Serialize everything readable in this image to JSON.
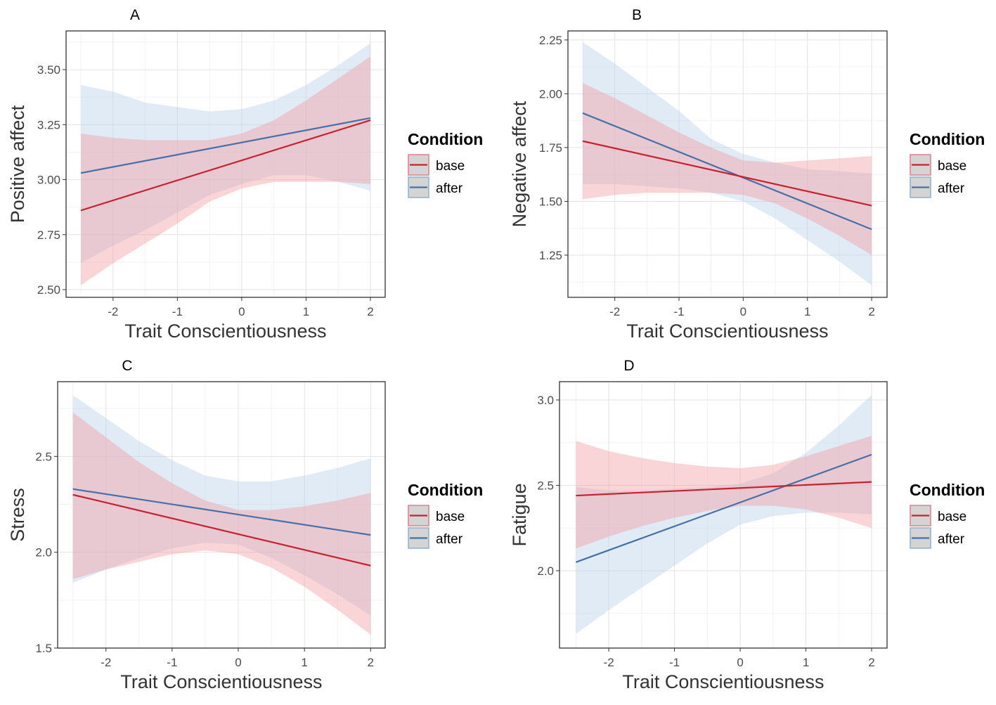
{
  "chart_data": [
    {
      "type": "line",
      "title": "A",
      "xlabel": "Trait Conscientiousness",
      "ylabel": "Positive affect",
      "xlim": [
        -2.73,
        2.23
      ],
      "ylim": [
        2.465,
        3.676
      ],
      "xticks": [
        -2,
        -1,
        0,
        1,
        2
      ],
      "xtick_labels": [
        "-2",
        "-1",
        "0",
        "1",
        "2"
      ],
      "yticks": [
        2.5,
        2.75,
        3.0,
        3.25,
        3.5
      ],
      "ytick_labels": [
        "2.50",
        "2.75",
        "3.00",
        "3.25",
        "3.50"
      ],
      "grid": true,
      "legend": {
        "title": "Condition",
        "placement": "right"
      },
      "series": [
        {
          "name": "base",
          "x": [
            -2.5,
            2
          ],
          "y": [
            2.86,
            3.27
          ],
          "ribbon": {
            "x": [
              -2.5,
              -2,
              -1.5,
              -1,
              -0.5,
              0,
              0.5,
              1,
              1.5,
              2
            ],
            "lower": [
              2.52,
              2.62,
              2.71,
              2.8,
              2.9,
              2.96,
              2.99,
              2.99,
              2.99,
              2.98
            ],
            "upper": [
              3.21,
              3.19,
              3.18,
              3.18,
              3.18,
              3.21,
              3.27,
              3.36,
              3.46,
              3.56
            ]
          }
        },
        {
          "name": "after",
          "x": [
            -2.5,
            2
          ],
          "y": [
            3.03,
            3.28
          ],
          "ribbon": {
            "x": [
              -2.5,
              -2,
              -1.5,
              -1,
              -0.5,
              0,
              0.5,
              1,
              1.5,
              2
            ],
            "lower": [
              2.62,
              2.7,
              2.77,
              2.85,
              2.93,
              2.98,
              3.02,
              3.02,
              2.99,
              2.95
            ],
            "upper": [
              3.43,
              3.4,
              3.35,
              3.33,
              3.31,
              3.32,
              3.36,
              3.43,
              3.52,
              3.62
            ]
          }
        }
      ]
    },
    {
      "type": "line",
      "title": "B",
      "xlabel": "Trait Conscientiousness",
      "ylabel": "Negative affect",
      "xlim": [
        -2.73,
        2.24
      ],
      "ylim": [
        1.054,
        2.292
      ],
      "xticks": [
        -2,
        -1,
        0,
        1,
        2
      ],
      "xtick_labels": [
        "-2",
        "-1",
        "0",
        "1",
        "2"
      ],
      "yticks": [
        1.25,
        1.5,
        1.75,
        2.0,
        2.25
      ],
      "ytick_labels": [
        "1.25",
        "1.50",
        "1.75",
        "2.00",
        "2.25"
      ],
      "grid": true,
      "legend": {
        "title": "Condition",
        "placement": "right"
      },
      "series": [
        {
          "name": "base",
          "x": [
            -2.5,
            2
          ],
          "y": [
            1.78,
            1.48
          ],
          "ribbon": {
            "x": [
              -2.5,
              -2,
              -1.5,
              -1,
              -0.5,
              0,
              0.5,
              1,
              1.5,
              2
            ],
            "lower": [
              1.51,
              1.53,
              1.54,
              1.54,
              1.54,
              1.53,
              1.49,
              1.42,
              1.34,
              1.25
            ],
            "upper": [
              2.05,
              1.98,
              1.9,
              1.82,
              1.75,
              1.69,
              1.68,
              1.69,
              1.7,
              1.71
            ]
          }
        },
        {
          "name": "after",
          "x": [
            -2.5,
            2
          ],
          "y": [
            1.91,
            1.37
          ],
          "ribbon": {
            "x": [
              -2.5,
              -2,
              -1.5,
              -1,
              -0.5,
              0,
              0.5,
              1,
              1.5,
              2
            ],
            "lower": [
              1.58,
              1.58,
              1.57,
              1.56,
              1.54,
              1.5,
              1.42,
              1.32,
              1.22,
              1.11
            ],
            "upper": [
              2.24,
              2.14,
              2.03,
              1.92,
              1.79,
              1.72,
              1.68,
              1.65,
              1.64,
              1.63
            ]
          }
        }
      ]
    },
    {
      "type": "line",
      "title": "C",
      "xlabel": "Trait Conscientiousness",
      "ylabel": "Stress",
      "xlim": [
        -2.73,
        2.22
      ],
      "ylim": [
        1.5,
        2.89
      ],
      "xticks": [
        -2,
        -1,
        0,
        1,
        2
      ],
      "xtick_labels": [
        "-2",
        "-1",
        "0",
        "1",
        "2"
      ],
      "yticks": [
        1.5,
        2.0,
        2.5
      ],
      "ytick_labels": [
        "1.5",
        "2.0",
        "2.5"
      ],
      "grid": true,
      "legend": {
        "title": "Condition",
        "placement": "right"
      },
      "series": [
        {
          "name": "base",
          "x": [
            -2.5,
            2
          ],
          "y": [
            2.3,
            1.93
          ],
          "ribbon": {
            "x": [
              -2.5,
              -2,
              -1.5,
              -1,
              -0.5,
              0,
              0.5,
              1,
              1.5,
              2
            ],
            "lower": [
              1.86,
              1.91,
              1.95,
              1.99,
              2.01,
              1.99,
              1.92,
              1.82,
              1.7,
              1.57
            ],
            "upper": [
              2.73,
              2.6,
              2.47,
              2.36,
              2.27,
              2.22,
              2.22,
              2.24,
              2.27,
              2.31
            ]
          }
        },
        {
          "name": "after",
          "x": [
            -2.5,
            2
          ],
          "y": [
            2.33,
            2.09
          ],
          "ribbon": {
            "x": [
              -2.5,
              -2,
              -1.5,
              -1,
              -0.5,
              0,
              0.5,
              1,
              1.5,
              2
            ],
            "lower": [
              1.84,
              1.91,
              1.97,
              2.02,
              2.05,
              2.04,
              1.97,
              1.88,
              1.78,
              1.67
            ],
            "upper": [
              2.82,
              2.7,
              2.58,
              2.48,
              2.4,
              2.37,
              2.37,
              2.4,
              2.44,
              2.49
            ]
          }
        }
      ]
    },
    {
      "type": "line",
      "title": "D",
      "xlabel": "Trait Conscientiousness",
      "ylabel": "Fatigue",
      "xlim": [
        -2.75,
        2.235
      ],
      "ylim": [
        1.547,
        3.107
      ],
      "xticks": [
        -2,
        -1,
        0,
        1,
        2
      ],
      "xtick_labels": [
        "-2",
        "-1",
        "0",
        "1",
        "2"
      ],
      "yticks": [
        2.0,
        2.5,
        3.0
      ],
      "ytick_labels": [
        "2.0",
        "2.5",
        "3.0"
      ],
      "grid": true,
      "legend": {
        "title": "Condition",
        "placement": "right"
      },
      "series": [
        {
          "name": "base",
          "x": [
            -2.5,
            2
          ],
          "y": [
            2.44,
            2.52
          ],
          "ribbon": {
            "x": [
              -2.5,
              -2,
              -1.5,
              -1,
              -0.5,
              0,
              0.5,
              1,
              1.5,
              2
            ],
            "lower": [
              2.13,
              2.2,
              2.26,
              2.31,
              2.35,
              2.38,
              2.38,
              2.36,
              2.31,
              2.25
            ],
            "upper": [
              2.76,
              2.7,
              2.66,
              2.63,
              2.61,
              2.6,
              2.62,
              2.67,
              2.73,
              2.79
            ]
          }
        },
        {
          "name": "after",
          "x": [
            -2.5,
            2
          ],
          "y": [
            2.05,
            2.68
          ],
          "ribbon": {
            "x": [
              -2.5,
              -2,
              -1.5,
              -1,
              -0.5,
              0,
              0.5,
              1,
              1.5,
              2
            ],
            "lower": [
              1.63,
              1.77,
              1.9,
              2.03,
              2.16,
              2.27,
              2.32,
              2.34,
              2.34,
              2.33
            ],
            "upper": [
              2.49,
              2.47,
              2.47,
              2.48,
              2.49,
              2.51,
              2.57,
              2.69,
              2.85,
              3.03
            ]
          }
        }
      ]
    }
  ],
  "colors": {
    "base_line": "#c8202f",
    "after_line": "#4570a8",
    "base_ribbon": "#f39aa2",
    "after_ribbon": "#b5cfe8",
    "legend_key_bg": "#d4d4d4"
  }
}
